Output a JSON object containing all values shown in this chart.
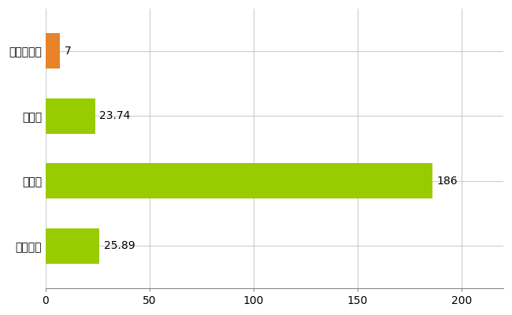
{
  "categories": [
    "みなかみ町",
    "県平均",
    "県最大",
    "全国平均"
  ],
  "values": [
    7,
    23.74,
    186,
    25.89
  ],
  "bar_colors": [
    "#e8832a",
    "#99cc00",
    "#99cc00",
    "#99cc00"
  ],
  "value_labels": [
    "7",
    "23.74",
    "186",
    "25.89"
  ],
  "xlim": [
    0,
    220
  ],
  "xticks": [
    0,
    50,
    100,
    150,
    200
  ],
  "background_color": "#ffffff",
  "grid_color": "#cccccc",
  "bar_height": 0.55,
  "label_fontsize": 10,
  "tick_fontsize": 10
}
